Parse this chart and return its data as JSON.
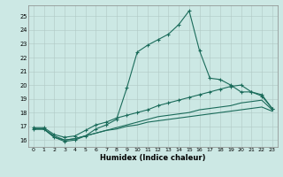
{
  "xlabel": "Humidex (Indice chaleur)",
  "background_color": "#cce8e4",
  "grid_color": "#b0c8c4",
  "line_color": "#1a6b5a",
  "xlim": [
    -0.5,
    23.5
  ],
  "ylim": [
    15.5,
    25.8
  ],
  "xticks": [
    0,
    1,
    2,
    3,
    4,
    5,
    6,
    7,
    8,
    9,
    10,
    11,
    12,
    13,
    14,
    15,
    16,
    17,
    18,
    19,
    20,
    21,
    22,
    23
  ],
  "yticks": [
    16,
    17,
    18,
    19,
    20,
    21,
    22,
    23,
    24,
    25
  ],
  "line1_x": [
    0,
    1,
    2,
    3,
    4,
    5,
    6,
    7,
    8,
    9,
    10,
    11,
    12,
    13,
    14,
    15,
    16,
    17,
    18,
    19,
    20,
    21,
    22,
    23
  ],
  "line1_y": [
    16.8,
    16.8,
    16.2,
    15.9,
    16.0,
    16.3,
    16.8,
    17.1,
    17.5,
    19.8,
    22.4,
    22.9,
    23.3,
    23.7,
    24.4,
    25.4,
    22.5,
    20.5,
    20.4,
    20.0,
    19.5,
    19.5,
    19.2,
    18.3
  ],
  "line2_x": [
    0,
    1,
    2,
    3,
    4,
    5,
    6,
    7,
    8,
    9,
    10,
    11,
    12,
    13,
    14,
    15,
    16,
    17,
    18,
    19,
    20,
    21,
    22,
    23
  ],
  "line2_y": [
    16.9,
    16.9,
    16.4,
    16.2,
    16.3,
    16.7,
    17.1,
    17.3,
    17.6,
    17.8,
    18.0,
    18.2,
    18.5,
    18.7,
    18.9,
    19.1,
    19.3,
    19.5,
    19.7,
    19.9,
    20.0,
    19.5,
    19.3,
    18.3
  ],
  "line3_x": [
    0,
    1,
    2,
    3,
    4,
    5,
    6,
    7,
    8,
    9,
    10,
    11,
    12,
    13,
    14,
    15,
    16,
    17,
    18,
    19,
    20,
    21,
    22,
    23
  ],
  "line3_y": [
    16.8,
    16.8,
    16.3,
    16.0,
    16.1,
    16.3,
    16.5,
    16.7,
    16.9,
    17.1,
    17.3,
    17.5,
    17.7,
    17.8,
    17.9,
    18.0,
    18.2,
    18.3,
    18.4,
    18.5,
    18.7,
    18.8,
    18.9,
    18.2
  ],
  "line4_x": [
    0,
    1,
    2,
    3,
    4,
    5,
    6,
    7,
    8,
    9,
    10,
    11,
    12,
    13,
    14,
    15,
    16,
    17,
    18,
    19,
    20,
    21,
    22,
    23
  ],
  "line4_y": [
    16.8,
    16.8,
    16.2,
    16.0,
    16.1,
    16.3,
    16.5,
    16.7,
    16.8,
    17.0,
    17.1,
    17.3,
    17.4,
    17.5,
    17.6,
    17.7,
    17.8,
    17.9,
    18.0,
    18.1,
    18.2,
    18.3,
    18.4,
    18.1
  ]
}
